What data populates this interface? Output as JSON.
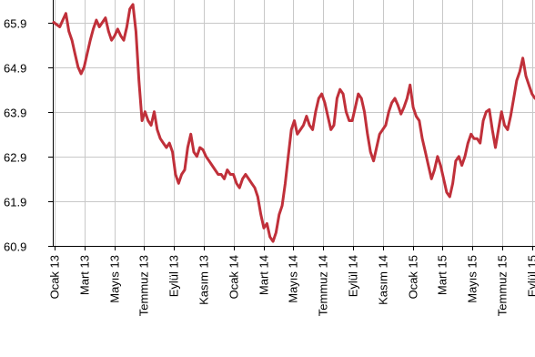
{
  "chart_data": {
    "type": "line",
    "title": "",
    "xlabel": "",
    "ylabel": "",
    "ylim": [
      60.9,
      66.4
    ],
    "grid": true,
    "legend": "none",
    "y_ticks": [
      60.9,
      61.9,
      62.9,
      63.9,
      64.9,
      65.9
    ],
    "y_tick_labels": [
      "60.9",
      "61.9",
      "62.9",
      "63.9",
      "64.9",
      "65.9"
    ],
    "x_tick_labels": [
      "Ocak 13",
      "Mart 13",
      "Mayıs 13",
      "Temmuz 13",
      "Eylül 13",
      "Kasım 13",
      "Ocak 14",
      "Mart 14",
      "Mayıs 14",
      "Temmuz 14",
      "Eylül 14",
      "Kasım 14",
      "Ocak 15",
      "Mart 15",
      "Mayıs 15",
      "Temmuz 15",
      "Eylül 15"
    ],
    "colors": {
      "line": "#c0303a",
      "grid": "#c8c8c8",
      "axis": "#000000"
    },
    "series": [
      {
        "values": [
          65.9,
          65.85,
          65.8,
          65.95,
          66.1,
          65.7,
          65.5,
          65.2,
          64.9,
          64.75,
          64.9,
          65.2,
          65.5,
          65.75,
          65.95,
          65.8,
          65.9,
          66.0,
          65.7,
          65.5,
          65.6,
          65.75,
          65.6,
          65.5,
          65.8,
          66.2,
          66.3,
          65.7,
          64.6,
          63.7,
          63.9,
          63.7,
          63.6,
          63.9,
          63.5,
          63.3,
          63.2,
          63.1,
          63.2,
          63.0,
          62.5,
          62.3,
          62.5,
          62.6,
          63.1,
          63.4,
          63.0,
          62.9,
          63.1,
          63.05,
          62.9,
          62.8,
          62.7,
          62.6,
          62.5,
          62.5,
          62.4,
          62.6,
          62.5,
          62.5,
          62.3,
          62.2,
          62.4,
          62.5,
          62.4,
          62.3,
          62.2,
          62.0,
          61.6,
          61.3,
          61.4,
          61.1,
          61.0,
          61.2,
          61.6,
          61.8,
          62.3,
          62.9,
          63.5,
          63.7,
          63.4,
          63.5,
          63.6,
          63.8,
          63.6,
          63.5,
          63.9,
          64.2,
          64.3,
          64.1,
          63.8,
          63.5,
          63.6,
          64.2,
          64.4,
          64.3,
          63.9,
          63.7,
          63.7,
          64.0,
          64.3,
          64.2,
          63.9,
          63.4,
          63.0,
          62.8,
          63.1,
          63.4,
          63.5,
          63.6,
          63.9,
          64.1,
          64.2,
          64.05,
          63.85,
          64.0,
          64.2,
          64.5,
          64.0,
          63.8,
          63.7,
          63.3,
          63.0,
          62.7,
          62.4,
          62.6,
          62.9,
          62.7,
          62.4,
          62.1,
          62.0,
          62.3,
          62.8,
          62.9,
          62.7,
          62.9,
          63.2,
          63.4,
          63.3,
          63.3,
          63.2,
          63.7,
          63.9,
          63.95,
          63.5,
          63.1,
          63.5,
          63.9,
          63.6,
          63.5,
          63.8,
          64.2,
          64.6,
          64.8,
          65.1,
          64.7,
          64.5,
          64.3,
          64.2
        ]
      }
    ]
  }
}
